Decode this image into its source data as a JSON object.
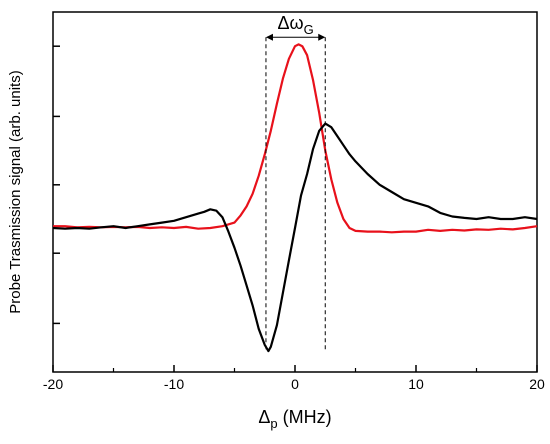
{
  "chart_data": {
    "type": "line",
    "title": "",
    "xlabel": "Δp (MHz)",
    "xlabel_base": "Δ",
    "xlabel_sub": "p",
    "xlabel_unit": " (MHz)",
    "ylabel": "Probe Trasmission signal (arb. units)",
    "xlim": [
      -20,
      20
    ],
    "ylim": [
      0,
      1
    ],
    "grid": false,
    "legend": "none",
    "x_ticks": [
      -20,
      -10,
      0,
      10,
      20
    ],
    "x_tick_labels": [
      "-20",
      "-10",
      "0",
      "10",
      "20"
    ],
    "y_ticks": [
      0.135,
      0.33,
      0.52,
      0.71,
      0.905
    ],
    "y_tick_labels": [],
    "annotation": {
      "text": "ΔωG",
      "base": "Δω",
      "sub": "G",
      "x_start": -2.4,
      "x_end": 2.5,
      "y_arrow": 0.93,
      "y_line_bottom": 0.06
    },
    "series": [
      {
        "color": "#e8111b",
        "points": [
          [
            -20,
            0.405
          ],
          [
            -19,
            0.405
          ],
          [
            -18,
            0.402
          ],
          [
            -17,
            0.403
          ],
          [
            -16,
            0.402
          ],
          [
            -15,
            0.403
          ],
          [
            -14,
            0.402
          ],
          [
            -13,
            0.403
          ],
          [
            -12,
            0.4
          ],
          [
            -11,
            0.402
          ],
          [
            -10,
            0.4
          ],
          [
            -9,
            0.403
          ],
          [
            -8,
            0.398
          ],
          [
            -7,
            0.4
          ],
          [
            -6,
            0.405
          ],
          [
            -5,
            0.415
          ],
          [
            -4.5,
            0.435
          ],
          [
            -4,
            0.46
          ],
          [
            -3.5,
            0.495
          ],
          [
            -3,
            0.545
          ],
          [
            -2.5,
            0.605
          ],
          [
            -2,
            0.67
          ],
          [
            -1.5,
            0.745
          ],
          [
            -1,
            0.815
          ],
          [
            -0.5,
            0.87
          ],
          [
            0,
            0.905
          ],
          [
            0.3,
            0.91
          ],
          [
            0.6,
            0.905
          ],
          [
            1,
            0.88
          ],
          [
            1.5,
            0.81
          ],
          [
            2,
            0.72
          ],
          [
            2.5,
            0.615
          ],
          [
            3,
            0.535
          ],
          [
            3.5,
            0.47
          ],
          [
            4,
            0.425
          ],
          [
            4.5,
            0.4
          ],
          [
            5,
            0.392
          ],
          [
            6,
            0.39
          ],
          [
            7,
            0.39
          ],
          [
            8,
            0.388
          ],
          [
            9,
            0.39
          ],
          [
            10,
            0.39
          ],
          [
            11,
            0.395
          ],
          [
            12,
            0.392
          ],
          [
            13,
            0.395
          ],
          [
            14,
            0.393
          ],
          [
            15,
            0.396
          ],
          [
            16,
            0.395
          ],
          [
            17,
            0.398
          ],
          [
            18,
            0.396
          ],
          [
            19,
            0.4
          ],
          [
            20,
            0.405
          ]
        ]
      },
      {
        "color": "#000000",
        "points": [
          [
            -20,
            0.4
          ],
          [
            -19,
            0.398
          ],
          [
            -18,
            0.4
          ],
          [
            -17,
            0.398
          ],
          [
            -16,
            0.402
          ],
          [
            -15,
            0.405
          ],
          [
            -14,
            0.4
          ],
          [
            -13,
            0.405
          ],
          [
            -12,
            0.41
          ],
          [
            -11,
            0.415
          ],
          [
            -10,
            0.42
          ],
          [
            -9,
            0.43
          ],
          [
            -8,
            0.44
          ],
          [
            -7.5,
            0.445
          ],
          [
            -7,
            0.452
          ],
          [
            -6.5,
            0.448
          ],
          [
            -6,
            0.43
          ],
          [
            -5.5,
            0.39
          ],
          [
            -5,
            0.345
          ],
          [
            -4.5,
            0.295
          ],
          [
            -4,
            0.24
          ],
          [
            -3.5,
            0.185
          ],
          [
            -3,
            0.12
          ],
          [
            -2.5,
            0.075
          ],
          [
            -2.2,
            0.058
          ],
          [
            -2,
            0.07
          ],
          [
            -1.5,
            0.13
          ],
          [
            -1,
            0.22
          ],
          [
            -0.5,
            0.31
          ],
          [
            0,
            0.4
          ],
          [
            0.5,
            0.49
          ],
          [
            1,
            0.55
          ],
          [
            1.5,
            0.62
          ],
          [
            2,
            0.67
          ],
          [
            2.5,
            0.69
          ],
          [
            3,
            0.68
          ],
          [
            3.5,
            0.655
          ],
          [
            4,
            0.63
          ],
          [
            4.5,
            0.605
          ],
          [
            5,
            0.585
          ],
          [
            6,
            0.55
          ],
          [
            7,
            0.52
          ],
          [
            8,
            0.5
          ],
          [
            9,
            0.48
          ],
          [
            10,
            0.47
          ],
          [
            11,
            0.46
          ],
          [
            12,
            0.442
          ],
          [
            13,
            0.432
          ],
          [
            14,
            0.428
          ],
          [
            15,
            0.425
          ],
          [
            16,
            0.43
          ],
          [
            17,
            0.425
          ],
          [
            18,
            0.425
          ],
          [
            19,
            0.43
          ],
          [
            20,
            0.425
          ]
        ]
      }
    ]
  }
}
